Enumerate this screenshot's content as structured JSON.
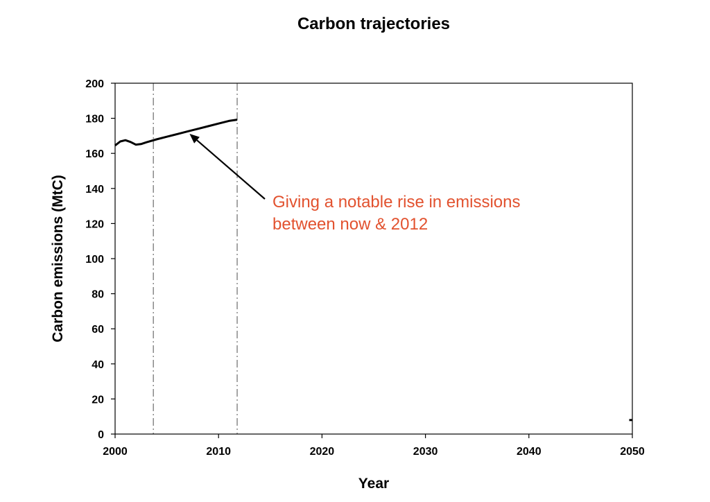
{
  "chart_data": {
    "type": "line",
    "title": "Carbon trajectories",
    "xlabel": "Year",
    "ylabel": "Carbon emissions (MtC)",
    "xlim": [
      2000,
      2050
    ],
    "ylim": [
      0,
      200
    ],
    "xticks": [
      2000,
      2010,
      2020,
      2030,
      2040,
      2050
    ],
    "yticks": [
      0,
      20,
      40,
      60,
      80,
      100,
      120,
      140,
      160,
      180,
      200
    ],
    "grid": false,
    "legend": "none",
    "series": [
      {
        "x": [
          2000,
          2000.5,
          2001,
          2001.5,
          2002,
          2002.5,
          2003,
          2004,
          2005,
          2006,
          2007,
          2008,
          2009,
          2010,
          2011,
          2011.8
        ],
        "y": [
          164.5,
          166.8,
          167.5,
          166.5,
          165,
          165.3,
          166.3,
          168,
          169.5,
          171,
          172.5,
          174,
          175.5,
          177,
          178.5,
          179.2
        ],
        "color": "#000000"
      },
      {
        "x": [
          2049.7,
          2050
        ],
        "y": [
          8,
          8
        ],
        "color": "#000000"
      }
    ],
    "reference_lines": [
      {
        "x": 2003.7,
        "style": "dash-dot",
        "color": "#808080"
      },
      {
        "x": 2011.8,
        "style": "dash-dot",
        "color": "#808080"
      }
    ],
    "annotation": {
      "lines": [
        "Giving a notable rise in emissions",
        "between now & 2012"
      ],
      "color": "#e2522f",
      "arrow_to": {
        "x": 2007.2,
        "y": 173.5
      }
    }
  }
}
